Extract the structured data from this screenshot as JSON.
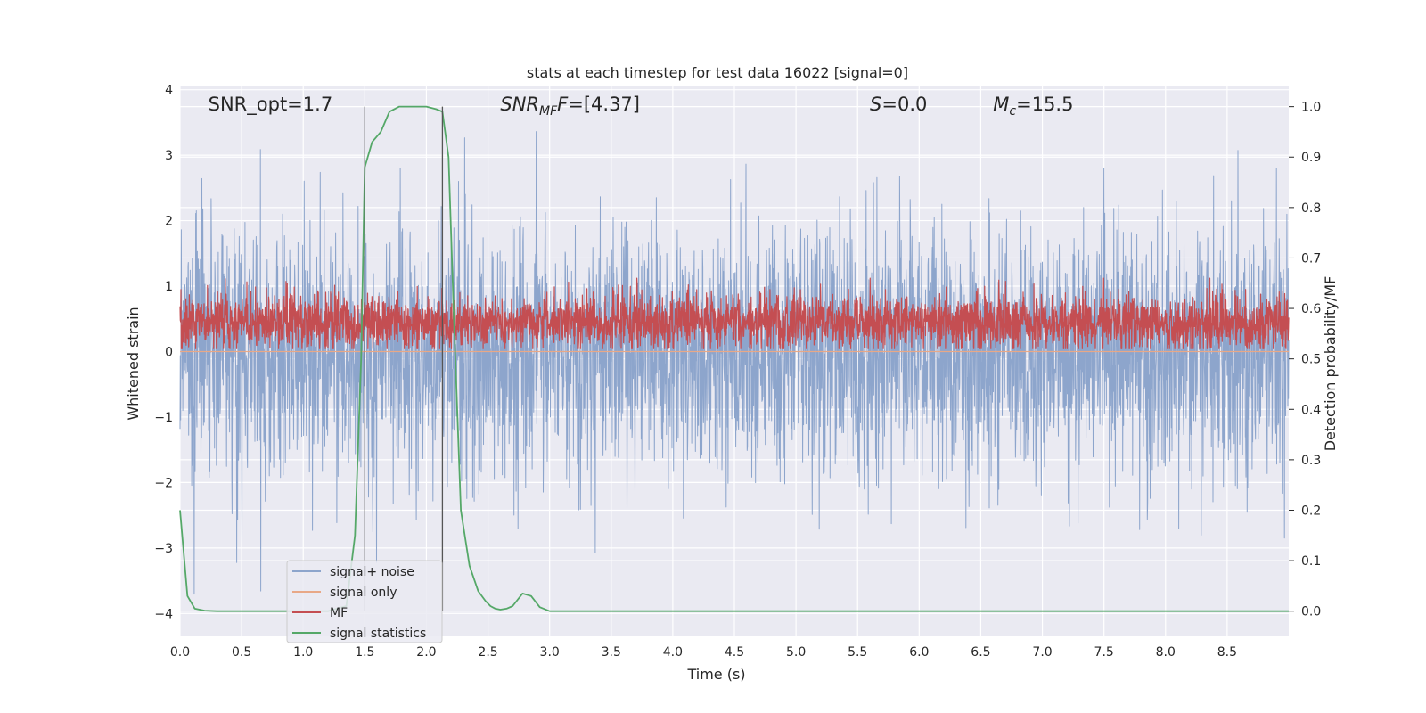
{
  "chart_data": {
    "type": "line",
    "title": "stats at each timestep for test data 16022 [signal=0]",
    "xlabel": "Time (s)",
    "ylabel": "Whitened strain",
    "y2label": "Detection probability/MF",
    "xlim": [
      0.0,
      9.0
    ],
    "ylim": [
      -4.35,
      4.05
    ],
    "y2lim": [
      -0.05,
      1.04
    ],
    "xticks": [
      "0.0",
      "0.5",
      "1.0",
      "1.5",
      "2.0",
      "2.5",
      "3.0",
      "3.5",
      "4.0",
      "4.5",
      "5.0",
      "5.5",
      "6.0",
      "6.5",
      "7.0",
      "7.5",
      "8.0",
      "8.5"
    ],
    "yticks": [
      "−4",
      "−3",
      "−2",
      "−1",
      "0",
      "1",
      "2",
      "3",
      "4"
    ],
    "y2ticks": [
      "0.0",
      "0.1",
      "0.2",
      "0.3",
      "0.4",
      "0.5",
      "0.6",
      "0.7",
      "0.8",
      "0.9",
      "1.0"
    ],
    "grid": true,
    "legend_position": "lower-left",
    "annotations": [
      {
        "id": "snr-opt",
        "text": "SNR_opt=1.7",
        "x": 0.2
      },
      {
        "id": "snr-mf",
        "text": "SNR",
        "sub": "MF",
        "rest": "F=[4.37]",
        "x": 2.6
      },
      {
        "id": "s-val",
        "text": "S",
        "rest": "=0.0",
        "x": 5.6
      },
      {
        "id": "mc-val",
        "text": "M",
        "sub": "c",
        "rest": "=15.5",
        "x": 6.6
      }
    ],
    "vlines": [
      1.5,
      2.13
    ],
    "series": [
      {
        "name": "signal+ noise",
        "color": "#8da5cc",
        "kind": "noise",
        "axis": "left",
        "std": 0.95,
        "npoints": 3600
      },
      {
        "name": "signal only",
        "color": "#e8a887",
        "kind": "flat",
        "axis": "left",
        "values": [
          0,
          0
        ]
      },
      {
        "name": "MF",
        "color": "#c44e52",
        "kind": "mf",
        "axis": "right",
        "mean": 0.572,
        "std": 0.028,
        "npoints": 3600
      },
      {
        "name": "signal statistics",
        "color": "#55a868",
        "kind": "line",
        "axis": "right",
        "x": [
          0.0,
          0.06,
          0.12,
          0.2,
          0.3,
          0.5,
          0.8,
          1.0,
          1.2,
          1.35,
          1.42,
          1.47,
          1.5,
          1.56,
          1.63,
          1.7,
          1.78,
          1.9,
          2.0,
          2.08,
          2.13,
          2.18,
          2.22,
          2.28,
          2.35,
          2.42,
          2.48,
          2.52,
          2.56,
          2.6,
          2.65,
          2.7,
          2.78,
          2.85,
          2.92,
          3.0,
          3.5,
          4.0,
          5.0,
          6.0,
          7.0,
          8.0,
          9.0
        ],
        "y": [
          0.2,
          0.03,
          0.005,
          0.001,
          0.0,
          0.0,
          0.0,
          0.0,
          0.0,
          0.01,
          0.15,
          0.5,
          0.88,
          0.93,
          0.95,
          0.99,
          1.0,
          1.0,
          1.0,
          0.995,
          0.99,
          0.9,
          0.6,
          0.2,
          0.09,
          0.04,
          0.02,
          0.01,
          0.005,
          0.003,
          0.005,
          0.01,
          0.035,
          0.03,
          0.008,
          0.0,
          0.0,
          0.0,
          0.0,
          0.0,
          0.0,
          0.0,
          0.0
        ]
      }
    ]
  }
}
